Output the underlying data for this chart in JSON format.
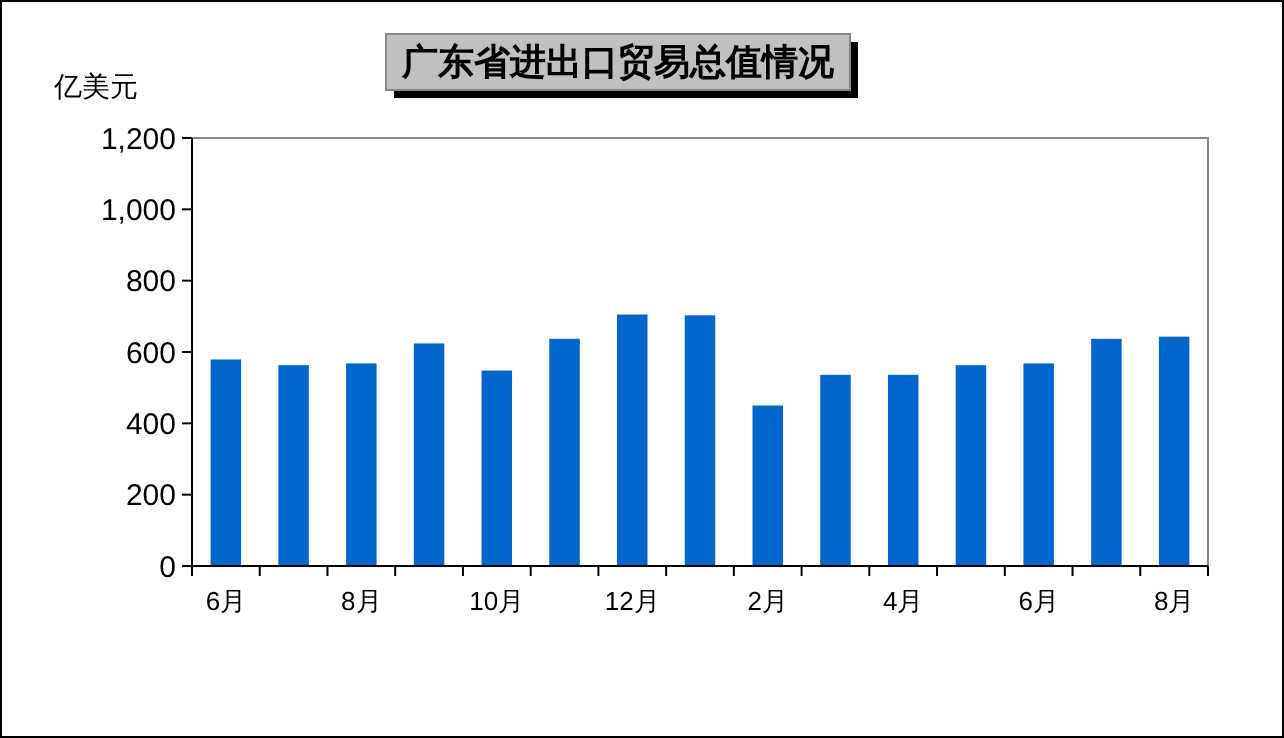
{
  "chart_data": {
    "type": "bar",
    "title": "广东省进出口贸易总值情况",
    "ylabel": "亿美元",
    "categories": [
      "6月",
      null,
      "8月",
      null,
      "10月",
      null,
      "12月",
      null,
      "2月",
      null,
      "4月",
      null,
      "6月",
      null,
      "8月"
    ],
    "values": [
      579,
      563,
      568,
      624,
      548,
      637,
      705,
      703,
      450,
      536,
      536,
      563,
      568,
      637,
      643
    ],
    "color": "#0066cc",
    "ylim": [
      0,
      1200
    ],
    "yticks": [
      {
        "value": 0,
        "label": "0"
      },
      {
        "value": 200,
        "label": "200"
      },
      {
        "value": 400,
        "label": "400"
      },
      {
        "value": 600,
        "label": "600"
      },
      {
        "value": 800,
        "label": "800"
      },
      {
        "value": 1000,
        "label": "1,000"
      },
      {
        "value": 1200,
        "label": "1,200"
      }
    ],
    "grid": false
  }
}
